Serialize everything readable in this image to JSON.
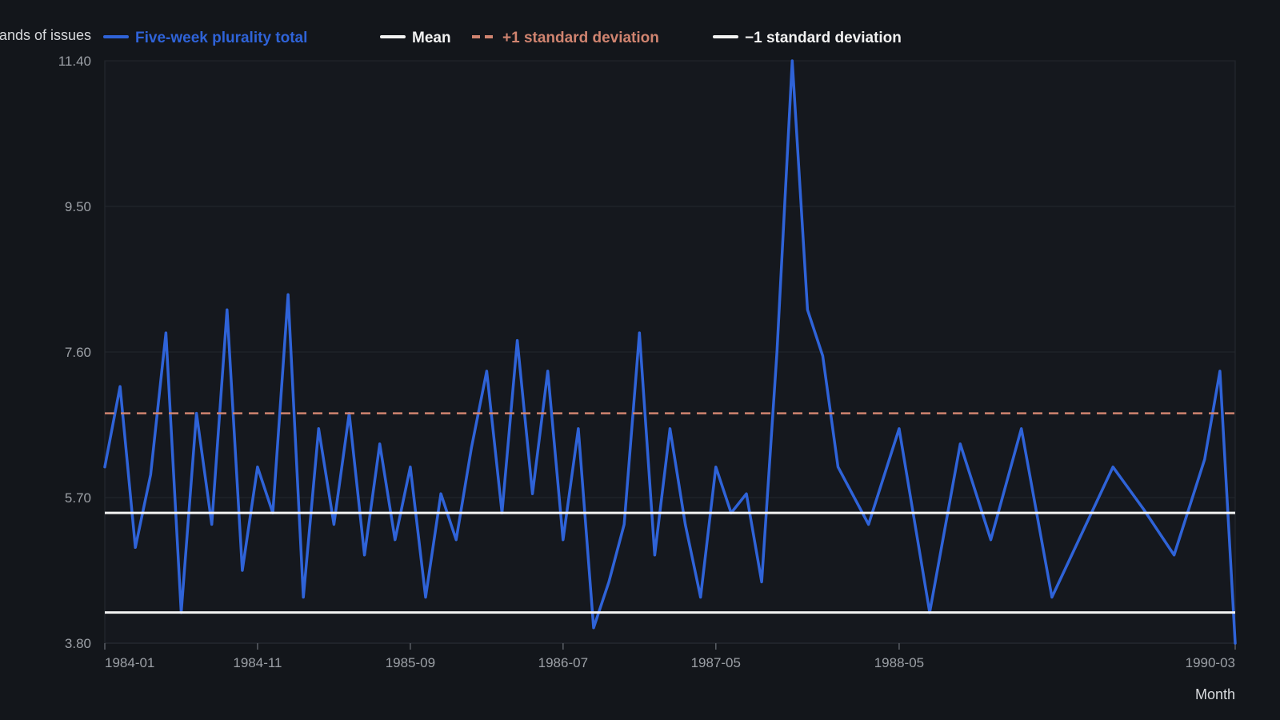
{
  "chart_data": {
    "type": "line",
    "ylabel": "Thousands of issues",
    "xlabel": "Month",
    "ylim": [
      3.8,
      11.4
    ],
    "yticks": [
      "3.80",
      "5.70",
      "7.60",
      "9.50",
      "11.40"
    ],
    "xticks": [
      {
        "label": "1984-01",
        "x": 0
      },
      {
        "label": "1984-11",
        "x": 10
      },
      {
        "label": "1985-09",
        "x": 20
      },
      {
        "label": "1986-07",
        "x": 30
      },
      {
        "label": "1987-05",
        "x": 40
      },
      {
        "label": "1988-05",
        "x": 52
      },
      {
        "label": "1990-03",
        "x": 74
      }
    ],
    "xlim": [
      0,
      74
    ],
    "grid": true,
    "legend_position": "top-left",
    "series": [
      {
        "name": "Five-week plurality total",
        "color": "#2f63d8",
        "style": "solid",
        "points": [
          [
            0,
            6.1
          ],
          [
            1,
            7.15
          ],
          [
            2,
            5.05
          ],
          [
            3,
            6.0
          ],
          [
            4,
            7.85
          ],
          [
            5,
            4.2
          ],
          [
            6,
            6.8
          ],
          [
            7,
            5.35
          ],
          [
            8,
            8.15
          ],
          [
            9,
            4.75
          ],
          [
            10,
            6.1
          ],
          [
            11,
            5.5
          ],
          [
            12,
            8.35
          ],
          [
            13,
            4.4
          ],
          [
            14,
            6.6
          ],
          [
            15,
            5.35
          ],
          [
            16,
            6.8
          ],
          [
            17,
            4.95
          ],
          [
            18,
            6.4
          ],
          [
            19,
            5.15
          ],
          [
            20,
            6.1
          ],
          [
            21,
            4.4
          ],
          [
            22,
            5.75
          ],
          [
            23,
            5.15
          ],
          [
            24,
            6.35
          ],
          [
            25,
            7.35
          ],
          [
            26,
            5.5
          ],
          [
            27,
            7.75
          ],
          [
            28,
            5.75
          ],
          [
            29,
            7.35
          ],
          [
            30,
            5.15
          ],
          [
            31,
            6.6
          ],
          [
            32,
            4.0
          ],
          [
            33,
            4.6
          ],
          [
            34,
            5.35
          ],
          [
            35,
            7.85
          ],
          [
            36,
            4.95
          ],
          [
            37,
            6.6
          ],
          [
            38,
            5.35
          ],
          [
            39,
            4.4
          ],
          [
            40,
            6.1
          ],
          [
            41,
            5.5
          ],
          [
            42,
            5.75
          ],
          [
            43,
            4.6
          ],
          [
            44,
            7.6
          ],
          [
            45,
            11.4
          ],
          [
            46,
            8.15
          ],
          [
            47,
            7.55
          ],
          [
            48,
            6.1
          ],
          [
            50,
            5.35
          ],
          [
            52,
            6.6
          ],
          [
            54,
            4.2
          ],
          [
            56,
            6.4
          ],
          [
            58,
            5.15
          ],
          [
            60,
            6.6
          ],
          [
            62,
            4.4
          ],
          [
            64,
            5.25
          ],
          [
            66,
            6.1
          ],
          [
            68,
            5.55
          ],
          [
            70,
            4.95
          ],
          [
            72,
            6.2
          ],
          [
            73,
            7.35
          ],
          [
            74,
            3.8
          ]
        ]
      },
      {
        "name": "Mean",
        "color": "#f2f2f2",
        "style": "solid",
        "value": 5.5
      },
      {
        "name": "+1 standard deviation",
        "color": "#d08470",
        "style": "dashed",
        "value": 6.8
      },
      {
        "name": "−1 standard deviation",
        "color": "#f2f2f2",
        "style": "solid",
        "value": 4.2
      }
    ]
  }
}
